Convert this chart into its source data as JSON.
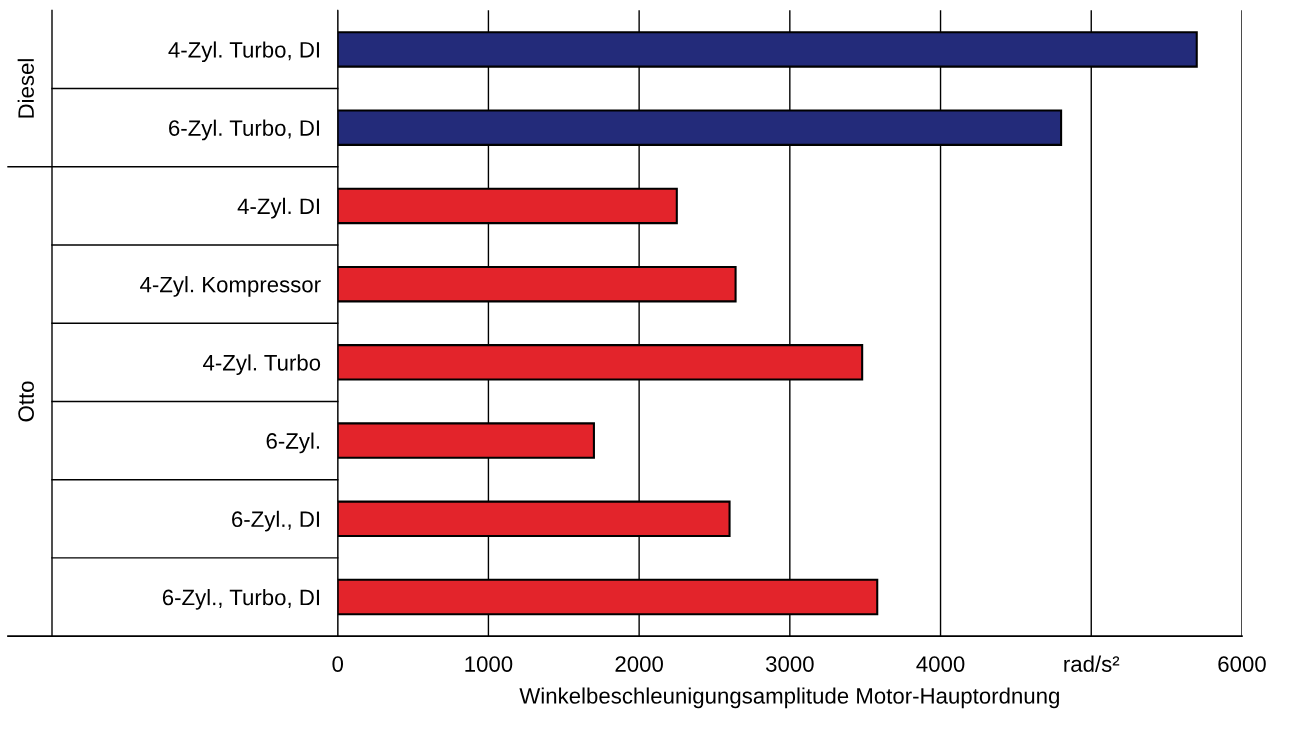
{
  "chart_data": {
    "type": "bar",
    "orientation": "horizontal",
    "categories": [
      "4-Zyl. Turbo, DI",
      "6-Zyl. Turbo, DI",
      "4-Zyl. DI",
      "4-Zyl. Kompressor",
      "4-Zyl. Turbo",
      "6-Zyl.",
      "6-Zyl., DI",
      "6-Zyl., Turbo, DI"
    ],
    "values": [
      5700,
      4800,
      2250,
      2640,
      3480,
      1700,
      2600,
      3580
    ],
    "colors": [
      "#232b7a",
      "#232b7a",
      "#e3242b",
      "#e3242b",
      "#e3242b",
      "#e3242b",
      "#e3242b",
      "#e3242b"
    ],
    "xlim": [
      0,
      6000
    ],
    "xticks": [
      0,
      1000,
      2000,
      3000,
      4000,
      {
        "value": 5000,
        "label": null
      },
      6000
    ],
    "xlabel": "Winkelbeschleunigungsamplitude Motor-Hauptordnung",
    "annotations": [
      "Diesel",
      "Otto",
      "rad/s²"
    ],
    "grid": "x",
    "legend": false
  }
}
